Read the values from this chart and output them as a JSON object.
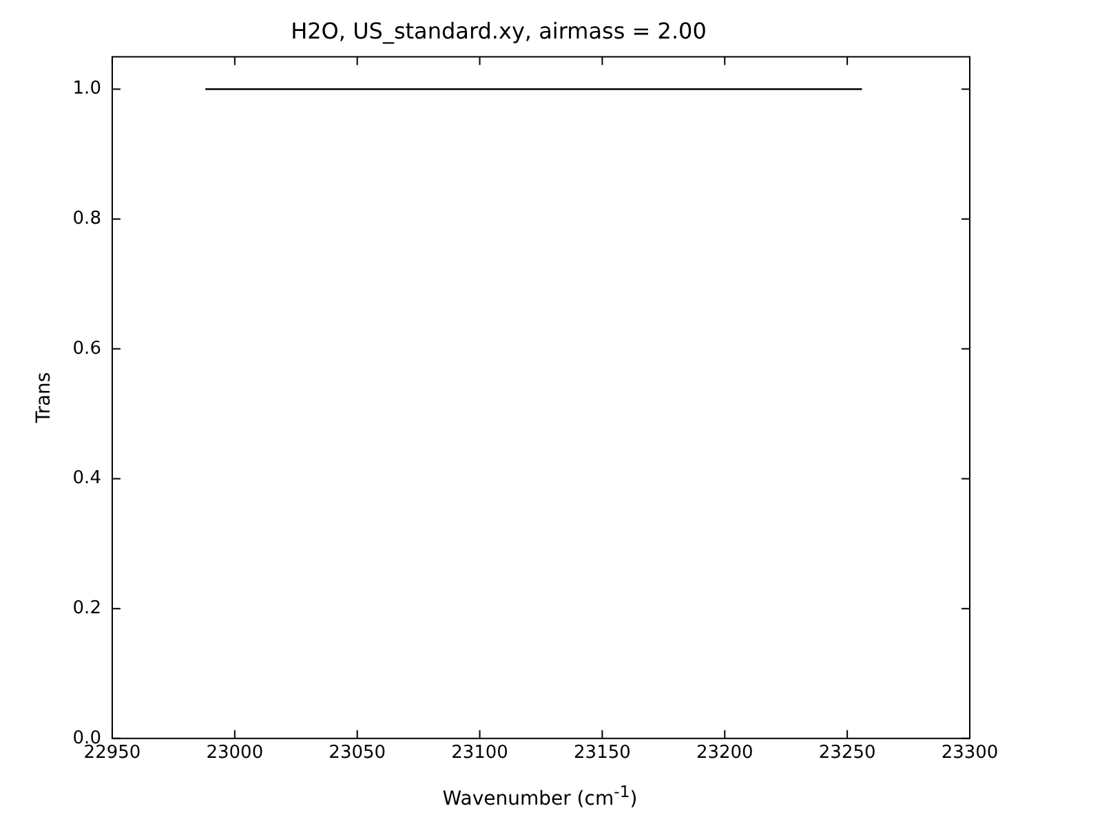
{
  "chart_data": {
    "type": "line",
    "title": "H2O, US_standard.xy, airmass = 2.00",
    "xlabel": "Wavenumber (cm$^{-1}$)",
    "ylabel": "Trans",
    "x": [
      22988,
      23256
    ],
    "series": [
      {
        "color": "#000000",
        "values": [
          1.0,
          1.0
        ]
      }
    ],
    "xlim": [
      22950,
      23300
    ],
    "xticks": [
      22950,
      23000,
      23050,
      23100,
      23150,
      23200,
      23250,
      23300
    ],
    "ylim": [
      0,
      1.05
    ],
    "yticks": [
      {
        "value": 0,
        "label": "0.0"
      },
      {
        "value": 0.2,
        "label": "0.2"
      },
      {
        "value": 0.4,
        "label": "0.4"
      },
      {
        "value": 0.6,
        "label": "0.6"
      },
      {
        "value": 0.8,
        "label": "0.8"
      },
      {
        "value": 1.0,
        "label": "1.0"
      }
    ],
    "grid": false,
    "legend": false,
    "marker": "none",
    "line_style": "solid"
  }
}
